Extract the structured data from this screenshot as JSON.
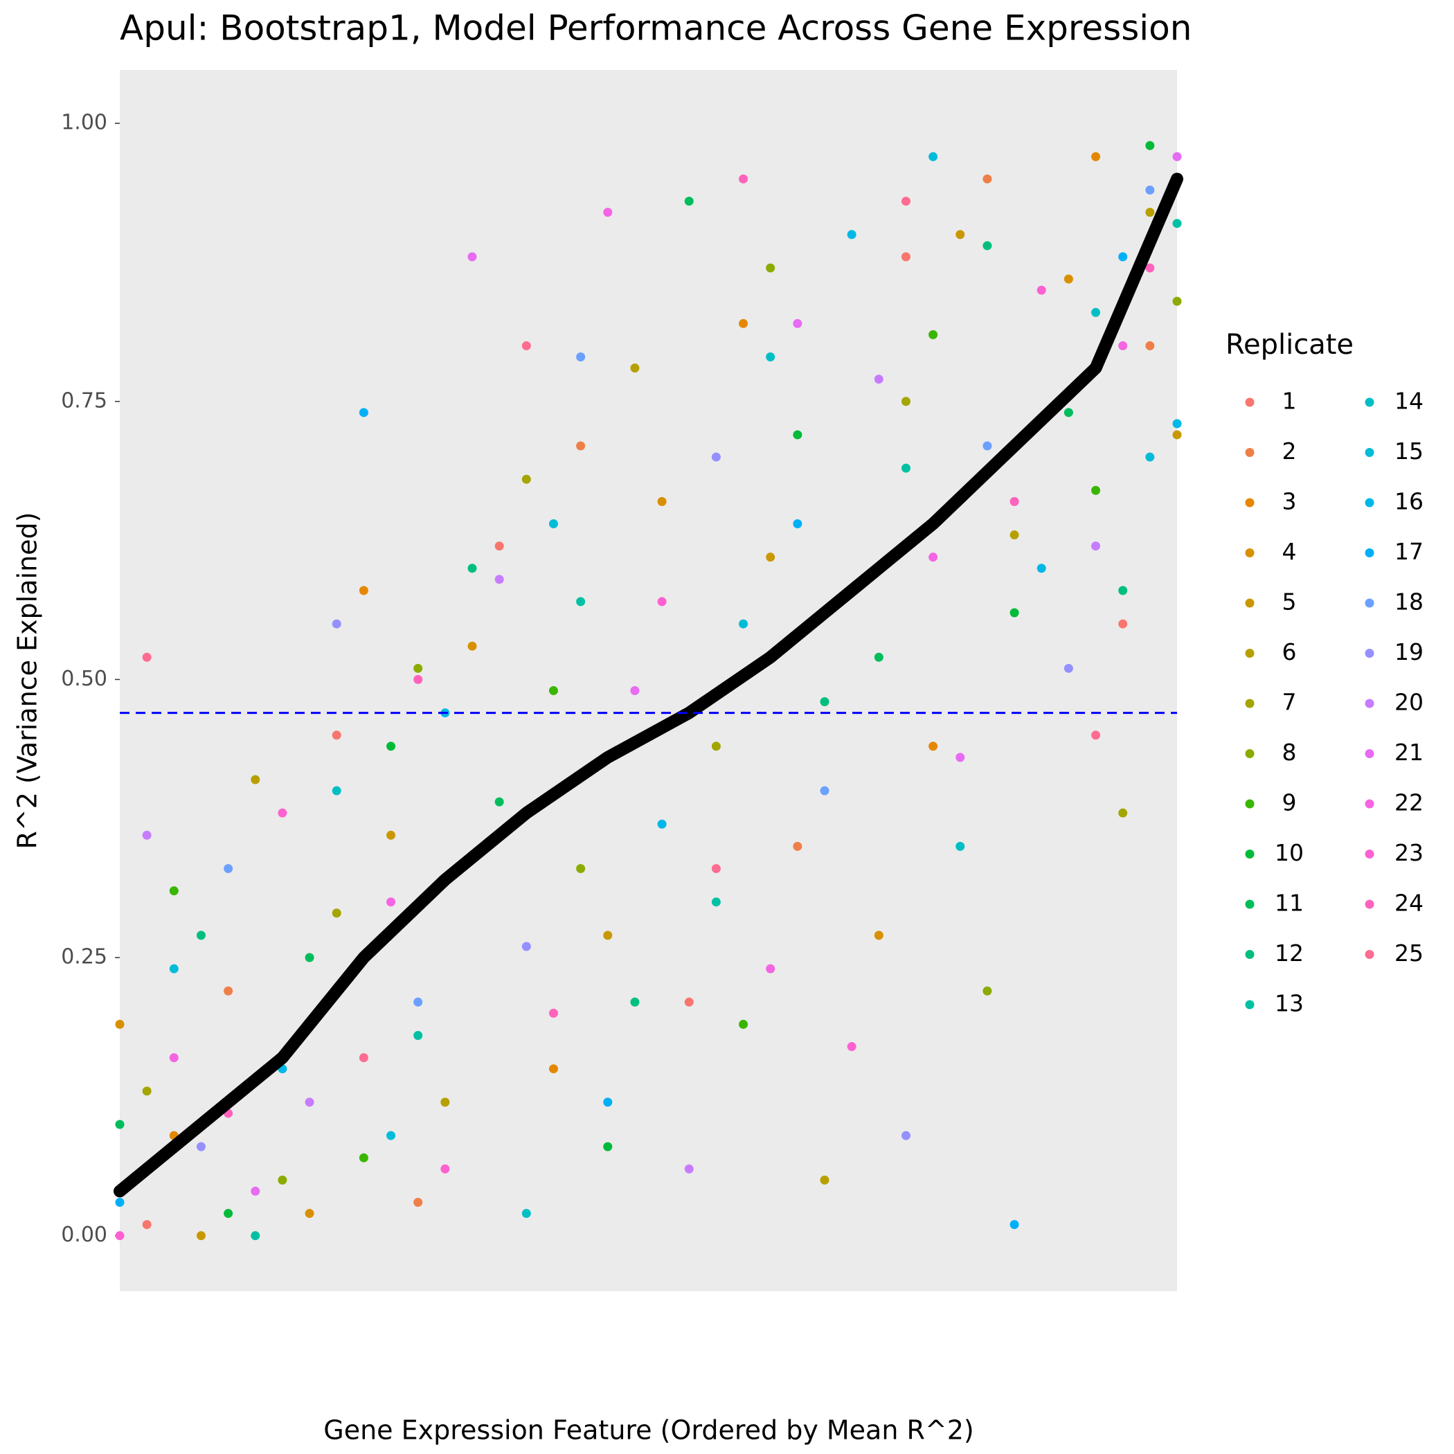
{
  "chart_data": {
    "type": "scatter",
    "title": "Apul: Bootstrap1, Model Performance Across Gene Expression",
    "x_label": "Gene Expression Feature (Ordered by Mean R^2)",
    "y_label": "R^2 (Variance Explained)",
    "legend_title": "Replicate",
    "legend_position": "right",
    "grid": false,
    "xlim": [
      1,
      40
    ],
    "ylim": [
      -0.05,
      1.048
    ],
    "yticks": [
      {
        "value": 0,
        "label": "0.00"
      },
      {
        "value": 0.25,
        "label": "0.25"
      },
      {
        "value": 0.5,
        "label": "0.50"
      },
      {
        "value": 0.75,
        "label": "0.75"
      },
      {
        "value": 1,
        "label": "1.00"
      }
    ],
    "hline": 0.47,
    "hline_color": "#0000ff",
    "mean_line": {
      "color": "#000000",
      "x": [
        1,
        4,
        7,
        10,
        13,
        16,
        19,
        22,
        25,
        28,
        31,
        34,
        37,
        40
      ],
      "values": [
        0.04,
        0.1,
        0.16,
        0.25,
        0.32,
        0.38,
        0.43,
        0.47,
        0.52,
        0.58,
        0.64,
        0.71,
        0.78,
        0.95
      ]
    },
    "series": [
      {
        "name": "1",
        "color": "#F8766D",
        "x": [
          2,
          9,
          15,
          22,
          30,
          38
        ],
        "values": [
          0.01,
          0.45,
          0.62,
          0.21,
          0.88,
          0.55
        ]
      },
      {
        "name": "2",
        "color": "#EF7F49",
        "x": [
          5,
          12,
          18,
          26,
          33,
          39
        ],
        "values": [
          0.22,
          0.03,
          0.71,
          0.35,
          0.95,
          0.8
        ]
      },
      {
        "name": "3",
        "color": "#E58700",
        "x": [
          3,
          10,
          17,
          24,
          31,
          37
        ],
        "values": [
          0.09,
          0.58,
          0.15,
          0.82,
          0.44,
          0.97
        ]
      },
      {
        "name": "4",
        "color": "#D89000",
        "x": [
          1,
          8,
          14,
          21,
          29,
          36
        ],
        "values": [
          0.19,
          0.02,
          0.53,
          0.66,
          0.27,
          0.86
        ]
      },
      {
        "name": "5",
        "color": "#C99800",
        "x": [
          4,
          11,
          19,
          25,
          32,
          40
        ],
        "values": [
          0.0,
          0.36,
          0.27,
          0.61,
          0.9,
          0.72
        ]
      },
      {
        "name": "6",
        "color": "#B79F00",
        "x": [
          6,
          13,
          20,
          27,
          34,
          39
        ],
        "values": [
          0.41,
          0.12,
          0.78,
          0.05,
          0.63,
          0.92
        ]
      },
      {
        "name": "7",
        "color": "#A3A500",
        "x": [
          2,
          9,
          16,
          23,
          30,
          38
        ],
        "values": [
          0.13,
          0.29,
          0.68,
          0.44,
          0.75,
          0.38
        ]
      },
      {
        "name": "8",
        "color": "#8BAB00",
        "x": [
          7,
          12,
          18,
          25,
          33,
          40
        ],
        "values": [
          0.05,
          0.51,
          0.33,
          0.87,
          0.22,
          0.84
        ]
      },
      {
        "name": "9",
        "color": "#39B600",
        "x": [
          3,
          10,
          17,
          24,
          31,
          37
        ],
        "values": [
          0.31,
          0.07,
          0.49,
          0.19,
          0.81,
          0.67
        ]
      },
      {
        "name": "10",
        "color": "#00BA38",
        "x": [
          5,
          11,
          19,
          26,
          34,
          39
        ],
        "values": [
          0.02,
          0.44,
          0.08,
          0.72,
          0.56,
          0.98
        ]
      },
      {
        "name": "11",
        "color": "#00BD5C",
        "x": [
          1,
          8,
          15,
          22,
          29,
          36
        ],
        "values": [
          0.1,
          0.25,
          0.39,
          0.93,
          0.52,
          0.74
        ]
      },
      {
        "name": "12",
        "color": "#00BF7D",
        "x": [
          4,
          14,
          20,
          27,
          33,
          38
        ],
        "values": [
          0.27,
          0.6,
          0.21,
          0.48,
          0.89,
          0.58
        ]
      },
      {
        "name": "13",
        "color": "#00C1A3",
        "x": [
          6,
          12,
          18,
          23,
          30,
          40
        ],
        "values": [
          0.0,
          0.18,
          0.57,
          0.3,
          0.69,
          0.91
        ]
      },
      {
        "name": "14",
        "color": "#00BFC4",
        "x": [
          2,
          9,
          16,
          25,
          32,
          37
        ],
        "values": [
          0.06,
          0.4,
          0.02,
          0.79,
          0.35,
          0.83
        ]
      },
      {
        "name": "15",
        "color": "#00BCD8",
        "x": [
          3,
          11,
          17,
          24,
          31,
          39
        ],
        "values": [
          0.24,
          0.09,
          0.64,
          0.55,
          0.97,
          0.7
        ]
      },
      {
        "name": "16",
        "color": "#00B8E7",
        "x": [
          7,
          13,
          21,
          28,
          35,
          40
        ],
        "values": [
          0.15,
          0.47,
          0.37,
          0.9,
          0.6,
          0.73
        ]
      },
      {
        "name": "17",
        "color": "#00B0F6",
        "x": [
          1,
          10,
          19,
          26,
          34,
          38
        ],
        "values": [
          0.03,
          0.74,
          0.12,
          0.64,
          0.01,
          0.88
        ]
      },
      {
        "name": "18",
        "color": "#6BA0FF",
        "x": [
          5,
          12,
          18,
          27,
          33,
          39
        ],
        "values": [
          0.33,
          0.21,
          0.79,
          0.4,
          0.71,
          0.94
        ]
      },
      {
        "name": "19",
        "color": "#9590FF",
        "x": [
          4,
          9,
          16,
          23,
          30,
          36
        ],
        "values": [
          0.08,
          0.55,
          0.26,
          0.7,
          0.09,
          0.51
        ]
      },
      {
        "name": "20",
        "color": "#C77CFF",
        "x": [
          2,
          8,
          15,
          22,
          29,
          37
        ],
        "values": [
          0.36,
          0.12,
          0.59,
          0.06,
          0.77,
          0.62
        ]
      },
      {
        "name": "21",
        "color": "#E76BF3",
        "x": [
          6,
          14,
          20,
          26,
          32,
          40
        ],
        "values": [
          0.04,
          0.88,
          0.49,
          0.82,
          0.43,
          0.97
        ]
      },
      {
        "name": "22",
        "color": "#F564E3",
        "x": [
          3,
          11,
          19,
          25,
          31,
          38
        ],
        "values": [
          0.16,
          0.3,
          0.92,
          0.24,
          0.61,
          0.8
        ]
      },
      {
        "name": "23",
        "color": "#FD61D1",
        "x": [
          1,
          7,
          13,
          21,
          28,
          35
        ],
        "values": [
          0.0,
          0.38,
          0.06,
          0.57,
          0.17,
          0.85
        ]
      },
      {
        "name": "24",
        "color": "#FF62BC",
        "x": [
          5,
          12,
          17,
          24,
          34,
          39
        ],
        "values": [
          0.11,
          0.5,
          0.2,
          0.95,
          0.66,
          0.87
        ]
      },
      {
        "name": "25",
        "color": "#FF6C91",
        "x": [
          2,
          10,
          16,
          23,
          30,
          37
        ],
        "values": [
          0.52,
          0.16,
          0.8,
          0.33,
          0.93,
          0.45
        ]
      }
    ]
  }
}
